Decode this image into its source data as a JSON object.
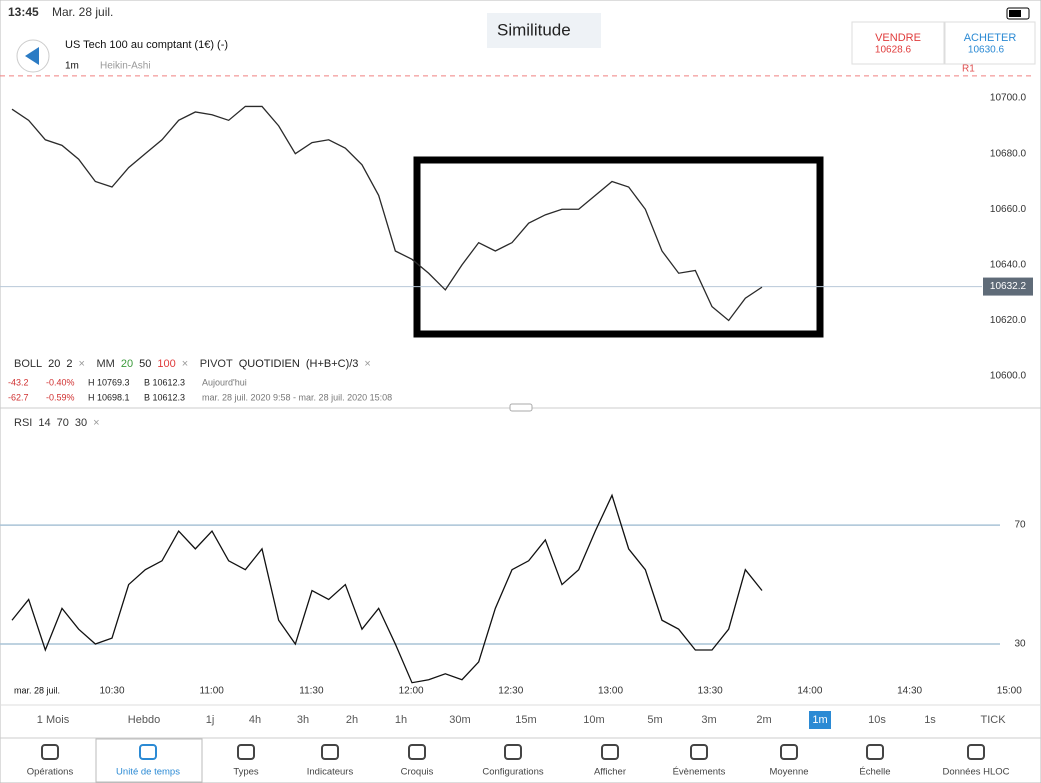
{
  "status_bar": {
    "time": "13:45",
    "date": "Mar. 28 juil."
  },
  "tab": "Similitude",
  "instrument": {
    "name": "US Tech 100 au comptant (1€) (-)",
    "timeframe": "1m",
    "chart_style": "Heikin-Ashi"
  },
  "sell": {
    "label": "VENDRE",
    "price": "10628.6"
  },
  "buy": {
    "label": "ACHETER",
    "price": "10630.6"
  },
  "indicators": [
    {
      "name": "BOLL",
      "params": [
        "20",
        "2"
      ]
    },
    {
      "name": "MM",
      "params": [
        "20",
        "50",
        "100"
      ]
    },
    {
      "name": "PIVOT",
      "params": [
        "QUOTIDIEN",
        "(H+B+C)/3"
      ]
    }
  ],
  "stats": [
    [
      "-43.2",
      "-0.40%",
      "H 10769.3",
      "B 10612.3",
      "Aujourd'hui"
    ],
    [
      "-62.7",
      "-0.59%",
      "H 10698.1",
      "B 10612.3",
      "mar. 28 juil. 2020 9:58 - mar. 28 juil. 2020 15:08"
    ]
  ],
  "rsi_label": {
    "name": "RSI",
    "params": [
      "14",
      "70",
      "30"
    ]
  },
  "chart_data": [
    {
      "type": "line",
      "x": [
        "10:00",
        "10:05",
        "10:10",
        "10:15",
        "10:20",
        "10:25",
        "10:30",
        "10:35",
        "10:40",
        "10:45",
        "10:50",
        "10:55",
        "11:00",
        "11:05",
        "11:10",
        "11:15",
        "11:20",
        "11:25",
        "11:30",
        "11:35",
        "11:40",
        "11:45",
        "11:50",
        "11:55",
        "12:00",
        "12:05",
        "12:10",
        "12:15",
        "12:20",
        "12:25",
        "12:30",
        "12:35",
        "12:40",
        "12:45",
        "12:50",
        "12:55",
        "13:00",
        "13:05",
        "13:10",
        "13:15",
        "13:20",
        "13:25",
        "13:30",
        "13:35",
        "13:40",
        "13:45"
      ],
      "values": [
        10696,
        10692,
        10685,
        10683,
        10678,
        10670,
        10668,
        10675,
        10680,
        10685,
        10692,
        10695,
        10694,
        10692,
        10697,
        10697,
        10690,
        10680,
        10684,
        10685,
        10682,
        10676,
        10665,
        10645,
        10642,
        10637,
        10631,
        10640,
        10648,
        10645,
        10648,
        10655,
        10658,
        10660,
        10660,
        10665,
        10670,
        10668,
        10660,
        10645,
        10637,
        10638,
        10625,
        10620,
        10628,
        10632
      ],
      "color": "#2a2a2a",
      "ylim": [
        10591.4,
        10711.9
      ],
      "yticks": [
        {
          "value": 10600,
          "label": "10600.0"
        },
        {
          "value": 10620,
          "label": "10620.0"
        },
        {
          "value": 10640,
          "label": "10640.0"
        },
        {
          "value": 10660,
          "label": "10660.0"
        },
        {
          "value": 10680,
          "label": "10680.0"
        },
        {
          "value": 10700,
          "label": "10700.0"
        }
      ],
      "last_price": 10632.2,
      "pivot": {
        "label": "R1",
        "value": 10708
      }
    },
    {
      "type": "line",
      "x": [
        "10:00",
        "10:05",
        "10:10",
        "10:15",
        "10:20",
        "10:25",
        "10:30",
        "10:35",
        "10:40",
        "10:45",
        "10:50",
        "10:55",
        "11:00",
        "11:05",
        "11:10",
        "11:15",
        "11:20",
        "11:25",
        "11:30",
        "11:35",
        "11:40",
        "11:45",
        "11:50",
        "11:55",
        "12:00",
        "12:05",
        "12:10",
        "12:15",
        "12:20",
        "12:25",
        "12:30",
        "12:35",
        "12:40",
        "12:45",
        "12:50",
        "12:55",
        "13:00",
        "13:05",
        "13:10",
        "13:15",
        "13:20",
        "13:25",
        "13:30",
        "13:35",
        "13:40",
        "13:45"
      ],
      "values": [
        38,
        45,
        28,
        42,
        35,
        30,
        32,
        50,
        55,
        58,
        68,
        62,
        68,
        58,
        55,
        62,
        38,
        30,
        48,
        45,
        50,
        35,
        42,
        30,
        17,
        18,
        20,
        18,
        24,
        42,
        55,
        58,
        65,
        50,
        55,
        68,
        80,
        62,
        55,
        38,
        35,
        28,
        28,
        35,
        55,
        48
      ],
      "color": "#111111",
      "ylim": [
        16.9,
        108.7
      ],
      "yticks": [
        30,
        70
      ]
    }
  ],
  "time_axis": [
    "mar. 28 juil.",
    "10:30",
    "11:00",
    "11:30",
    "12:00",
    "12:30",
    "13:00",
    "13:30",
    "14:00",
    "14:30",
    "15:00"
  ],
  "timeframes": [
    "1 Mois",
    "Hebdo",
    "1j",
    "4h",
    "3h",
    "2h",
    "1h",
    "30m",
    "15m",
    "10m",
    "5m",
    "3m",
    "2m",
    "1m",
    "10s",
    "1s",
    "TICK"
  ],
  "active_timeframe": "1m",
  "toolbar": [
    "Opérations",
    "Unité de temps",
    "Types",
    "Indicateurs",
    "Croquis",
    "Configurations",
    "Afficher",
    "Évènements",
    "Moyenne",
    "Échelle",
    "Données HLOC"
  ]
}
